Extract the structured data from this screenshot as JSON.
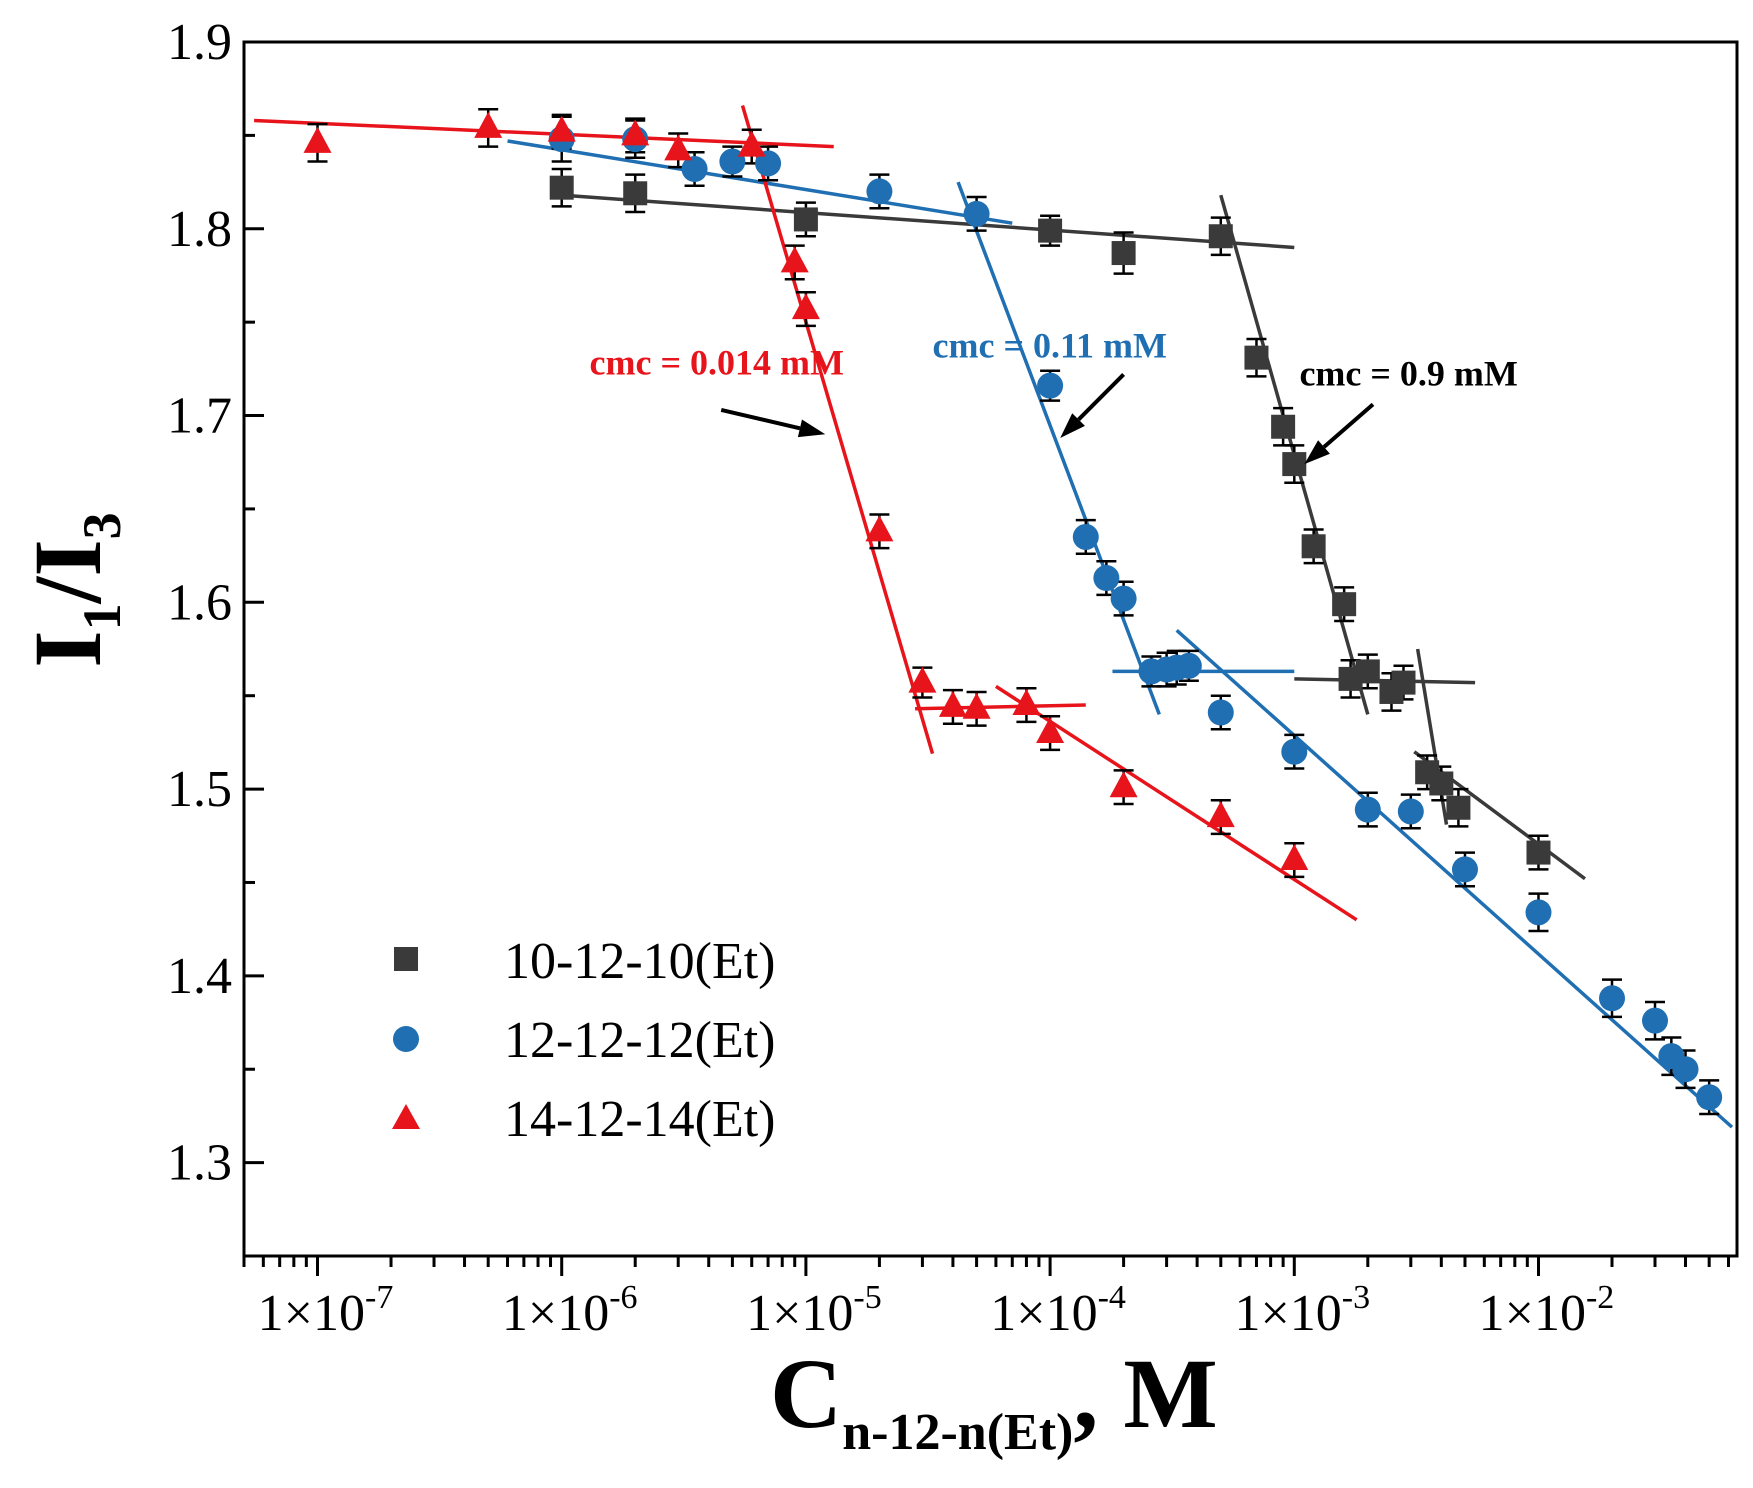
{
  "chart_data": {
    "type": "scatter",
    "x_scale": "log",
    "xlim": [
      5e-08,
      0.065
    ],
    "ylim": [
      1.25,
      1.9
    ],
    "xlabel": {
      "main": "C",
      "sub": "n-12-n(Et)",
      "suffix": ", M"
    },
    "ylabel": {
      "main1": "I",
      "sub1": "1",
      "mid": "/I",
      "sub2": "3"
    },
    "x_tick_values": [
      1e-07,
      1e-06,
      1e-05,
      0.0001,
      0.001,
      0.01
    ],
    "x_tick_labels": [
      {
        "m": "1×10",
        "e": "-7"
      },
      {
        "m": "1×10",
        "e": "-6"
      },
      {
        "m": "1×10",
        "e": "-5"
      },
      {
        "m": "1×10",
        "e": "-4"
      },
      {
        "m": "1×10",
        "e": "-3"
      },
      {
        "m": "1×10",
        "e": "-2"
      }
    ],
    "y_ticks": [
      1.3,
      1.4,
      1.5,
      1.6,
      1.7,
      1.8,
      1.9
    ],
    "y_tick_labels": [
      "1.3",
      "1.4",
      "1.5",
      "1.6",
      "1.7",
      "1.8",
      "1.9"
    ],
    "legend_position": "bottom-left",
    "series": [
      {
        "name": "10-12-10(Et)",
        "marker": "square",
        "color": "#3a3a3a",
        "points": [
          [
            1e-06,
            1.822,
            0.01
          ],
          [
            2e-06,
            1.819,
            0.01
          ],
          [
            1e-05,
            1.805,
            0.009
          ],
          [
            0.0001,
            1.799,
            0.008
          ],
          [
            0.0002,
            1.787,
            0.011
          ],
          [
            0.0005,
            1.796,
            0.01
          ],
          [
            0.0007,
            1.731,
            0.01
          ],
          [
            0.0009,
            1.694,
            0.01
          ],
          [
            0.001,
            1.674,
            0.01
          ],
          [
            0.0012,
            1.63,
            0.009
          ],
          [
            0.0016,
            1.599,
            0.009
          ],
          [
            0.0017,
            1.559,
            0.01
          ],
          [
            0.002,
            1.563,
            0.009
          ],
          [
            0.0025,
            1.552,
            0.01
          ],
          [
            0.0028,
            1.557,
            0.009
          ],
          [
            0.0035,
            1.509,
            0.009
          ],
          [
            0.004,
            1.503,
            0.009
          ],
          [
            0.0047,
            1.49,
            0.01
          ],
          [
            0.01,
            1.466,
            0.009
          ]
        ]
      },
      {
        "name": "12-12-12(Et)",
        "marker": "circle",
        "color": "#1f6fb2",
        "points": [
          [
            1e-06,
            1.848,
            0.012
          ],
          [
            2e-06,
            1.848,
            0.01
          ],
          [
            3.5e-06,
            1.832,
            0.009
          ],
          [
            5e-06,
            1.836,
            0.008
          ],
          [
            7e-06,
            1.835,
            0.009
          ],
          [
            2e-05,
            1.82,
            0.009
          ],
          [
            5e-05,
            1.808,
            0.009
          ],
          [
            0.0001,
            1.716,
            0.008
          ],
          [
            0.00014,
            1.635,
            0.009
          ],
          [
            0.00017,
            1.613,
            0.009
          ],
          [
            0.0002,
            1.602,
            0.009
          ],
          [
            0.00026,
            1.563,
            0.008
          ],
          [
            0.0003,
            1.564,
            0.009
          ],
          [
            0.00033,
            1.565,
            0.009
          ],
          [
            0.00037,
            1.566,
            0.008
          ],
          [
            0.0005,
            1.541,
            0.009
          ],
          [
            0.001,
            1.52,
            0.009
          ],
          [
            0.002,
            1.489,
            0.009
          ],
          [
            0.003,
            1.488,
            0.009
          ],
          [
            0.005,
            1.457,
            0.009
          ],
          [
            0.01,
            1.434,
            0.01
          ],
          [
            0.02,
            1.388,
            0.01
          ],
          [
            0.03,
            1.376,
            0.01
          ],
          [
            0.035,
            1.357,
            0.01
          ],
          [
            0.04,
            1.35,
            0.01
          ],
          [
            0.05,
            1.335,
            0.009
          ]
        ]
      },
      {
        "name": "14-12-14(Et)",
        "marker": "triangle",
        "color": "#e8141b",
        "points": [
          [
            1e-07,
            1.846,
            0.01
          ],
          [
            5e-07,
            1.854,
            0.01
          ],
          [
            1e-06,
            1.852,
            0.009
          ],
          [
            2e-06,
            1.85,
            0.009
          ],
          [
            3e-06,
            1.842,
            0.009
          ],
          [
            6e-06,
            1.844,
            0.009
          ],
          [
            9e-06,
            1.782,
            0.009
          ],
          [
            1e-05,
            1.757,
            0.009
          ],
          [
            2e-05,
            1.638,
            0.009
          ],
          [
            3e-05,
            1.557,
            0.008
          ],
          [
            4e-05,
            1.544,
            0.009
          ],
          [
            5e-05,
            1.543,
            0.009
          ],
          [
            8e-05,
            1.545,
            0.009
          ],
          [
            0.0001,
            1.53,
            0.009
          ],
          [
            0.0002,
            1.501,
            0.009
          ],
          [
            0.0005,
            1.485,
            0.009
          ],
          [
            0.001,
            1.462,
            0.009
          ]
        ]
      }
    ],
    "fit_lines": [
      {
        "color": "#3a3a3a",
        "from": [
          1e-06,
          1.818
        ],
        "to": [
          0.001,
          1.79
        ]
      },
      {
        "color": "#3a3a3a",
        "from": [
          0.0005,
          1.818
        ],
        "to": [
          0.002,
          1.54
        ]
      },
      {
        "color": "#3a3a3a",
        "from": [
          0.001,
          1.559
        ],
        "to": [
          0.0055,
          1.557
        ]
      },
      {
        "color": "#3a3a3a",
        "from": [
          0.0032,
          1.575
        ],
        "to": [
          0.0042,
          1.481
        ]
      },
      {
        "color": "#3a3a3a",
        "from": [
          0.0031,
          1.52
        ],
        "to": [
          0.0155,
          1.452
        ]
      },
      {
        "color": "#1f6fb2",
        "from": [
          6e-07,
          1.847
        ],
        "to": [
          7e-05,
          1.803
        ]
      },
      {
        "color": "#1f6fb2",
        "from": [
          4.2e-05,
          1.825
        ],
        "to": [
          0.00028,
          1.54
        ]
      },
      {
        "color": "#1f6fb2",
        "from": [
          0.00018,
          1.563
        ],
        "to": [
          0.001,
          1.563
        ]
      },
      {
        "color": "#1f6fb2",
        "from": [
          0.00033,
          1.585
        ],
        "to": [
          0.062,
          1.319
        ]
      },
      {
        "color": "#e8141b",
        "from": [
          5.5e-08,
          1.858
        ],
        "to": [
          1.3e-05,
          1.844
        ]
      },
      {
        "color": "#e8141b",
        "from": [
          5.5e-06,
          1.866
        ],
        "to": [
          3.3e-05,
          1.519
        ]
      },
      {
        "color": "#e8141b",
        "from": [
          2.8e-05,
          1.543
        ],
        "to": [
          0.00014,
          1.545
        ]
      },
      {
        "color": "#e8141b",
        "from": [
          6e-05,
          1.555
        ],
        "to": [
          0.0018,
          1.43
        ]
      }
    ],
    "annotations": [
      {
        "text": "cmc = 0.014 mM",
        "color": "#e8141b",
        "anchor": [
          1.3e-06,
          1.722
        ],
        "arrow_from": [
          4.5e-06,
          1.703
        ],
        "arrow_to": [
          1.2e-05,
          1.69
        ]
      },
      {
        "text": "cmc = 0.11 mM",
        "color": "#1f6fb2",
        "anchor": [
          3.3e-05,
          1.731
        ],
        "arrow_from": [
          0.0002,
          1.722
        ],
        "arrow_to": [
          0.00011,
          1.688
        ]
      },
      {
        "text": "cmc = 0.9 mM",
        "color": "#000000",
        "anchor": [
          0.00105,
          1.716
        ],
        "arrow_from": [
          0.0021,
          1.706
        ],
        "arrow_to": [
          0.0011,
          1.674
        ]
      }
    ]
  }
}
